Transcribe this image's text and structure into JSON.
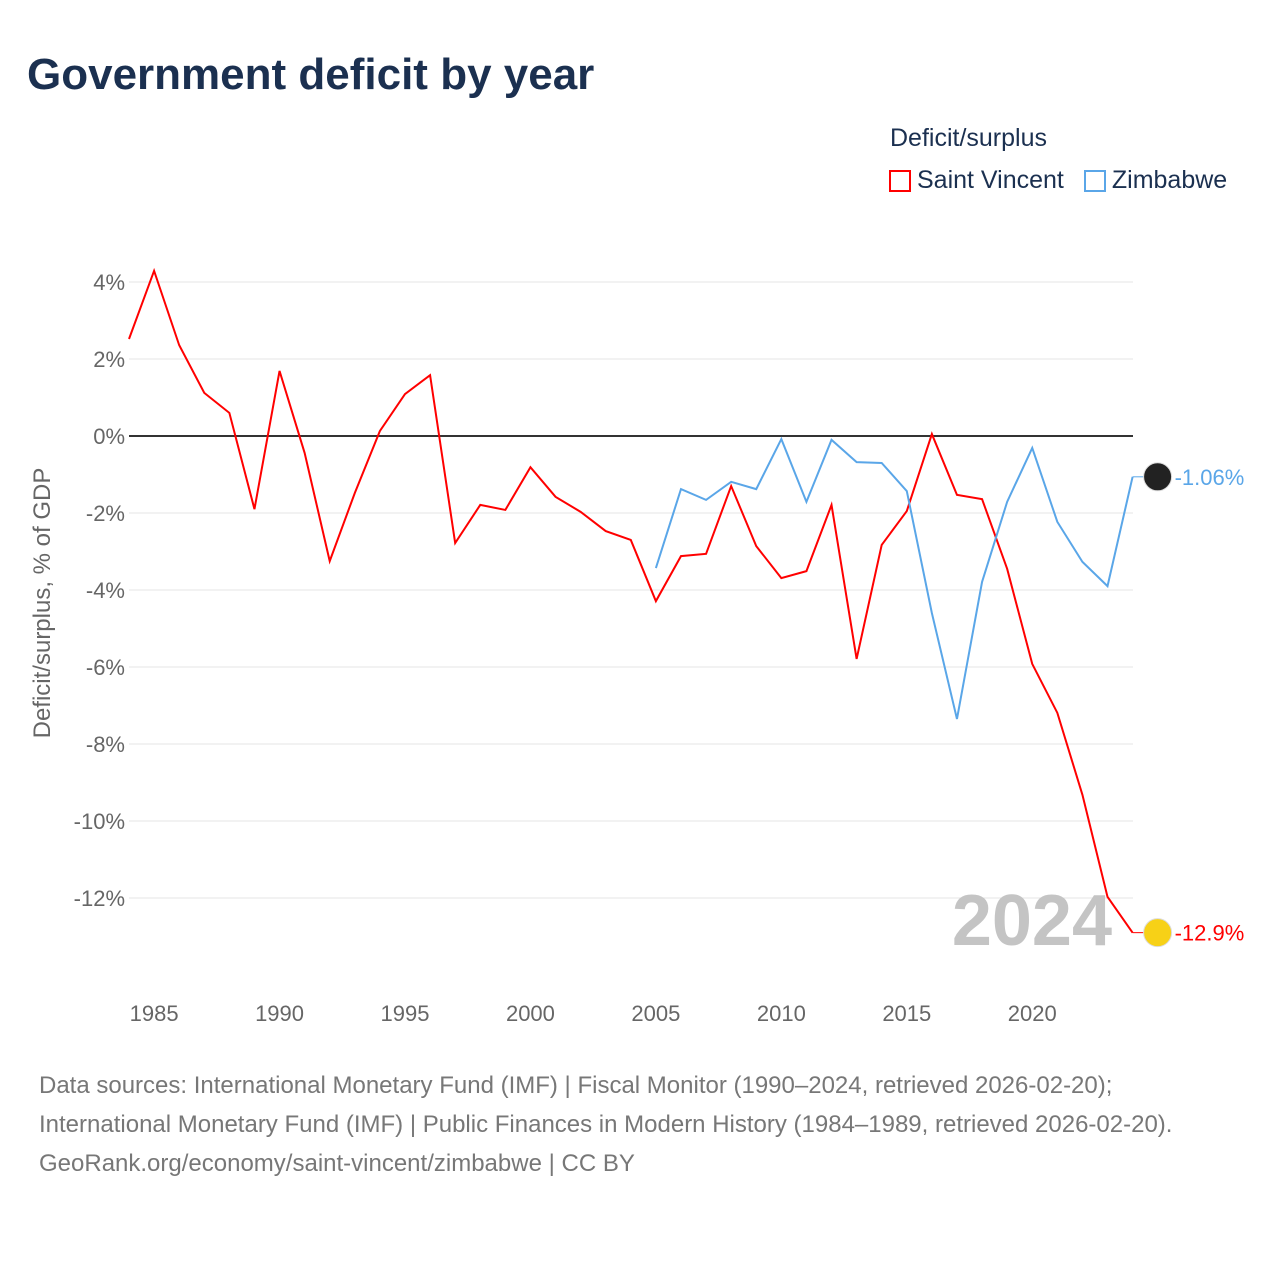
{
  "title": "Government deficit by year",
  "legend": {
    "title": "Deficit/surplus",
    "items": [
      {
        "label": "Saint Vincent",
        "color": "#ff0000"
      },
      {
        "label": "Zimbabwe",
        "color": "#5aa6e8"
      }
    ]
  },
  "chart_data": {
    "type": "line",
    "title": "Government deficit by year",
    "xlabel": "",
    "ylabel": "Deficit/surplus, % of GDP",
    "xlim": [
      1984,
      2024
    ],
    "ylim": [
      -14,
      4.5
    ],
    "x_ticks": [
      1985,
      1990,
      1995,
      2000,
      2005,
      2010,
      2015,
      2020
    ],
    "y_ticks": [
      4,
      2,
      0,
      -2,
      -4,
      -6,
      -8,
      -10,
      -12
    ],
    "y_tick_labels": [
      "4%",
      "2%",
      "0%",
      "-2%",
      "-4%",
      "-6%",
      "-8%",
      "-10%",
      "-12%"
    ],
    "year_watermark": "2024",
    "grid": true,
    "series": [
      {
        "name": "Saint Vincent",
        "color": "#ff0000",
        "end_label": "-12.9%",
        "x": [
          1984,
          1985,
          1986,
          1987,
          1988,
          1989,
          1990,
          1991,
          1992,
          1993,
          1994,
          1995,
          1996,
          1997,
          1998,
          1999,
          2000,
          2001,
          2002,
          2003,
          2004,
          2005,
          2006,
          2007,
          2008,
          2009,
          2010,
          2011,
          2012,
          2013,
          2014,
          2015,
          2016,
          2017,
          2018,
          2019,
          2020,
          2021,
          2022,
          2023,
          2024
        ],
        "values": [
          2.52,
          4.29,
          2.36,
          1.12,
          0.6,
          -1.9,
          1.69,
          -0.44,
          -3.25,
          -1.48,
          0.13,
          1.09,
          1.58,
          -2.78,
          -1.79,
          -1.92,
          -0.81,
          -1.58,
          -1.97,
          -2.47,
          -2.7,
          -4.29,
          -3.12,
          -3.06,
          -1.3,
          -2.86,
          -3.69,
          -3.51,
          -1.79,
          -5.79,
          -2.83,
          -1.95,
          0.05,
          -1.53,
          -1.64,
          -3.45,
          -5.92,
          -7.19,
          -9.32,
          -11.97,
          -12.9
        ]
      },
      {
        "name": "Zimbabwe",
        "color": "#5aa6e8",
        "end_label": "-1.06%",
        "x": [
          2005,
          2006,
          2007,
          2008,
          2009,
          2010,
          2011,
          2012,
          2013,
          2014,
          2015,
          2016,
          2017,
          2018,
          2019,
          2020,
          2021,
          2022,
          2023,
          2024
        ],
        "values": [
          -3.43,
          -1.38,
          -1.66,
          -1.19,
          -1.38,
          -0.08,
          -1.71,
          -0.1,
          -0.68,
          -0.7,
          -1.43,
          -4.6,
          -7.35,
          -3.79,
          -1.71,
          -0.31,
          -2.23,
          -3.27,
          -3.9,
          -1.06
        ]
      }
    ]
  },
  "footer": {
    "sources": "Data sources: International Monetary Fund (IMF) | Fiscal Monitor (1990–2024, retrieved 2026-02-20); International Monetary Fund (IMF) | Public Finances in Modern History (1984–1989, retrieved 2026-02-20).",
    "attribution": "GeoRank.org/economy/saint-vincent/zimbabwe | CC BY"
  }
}
